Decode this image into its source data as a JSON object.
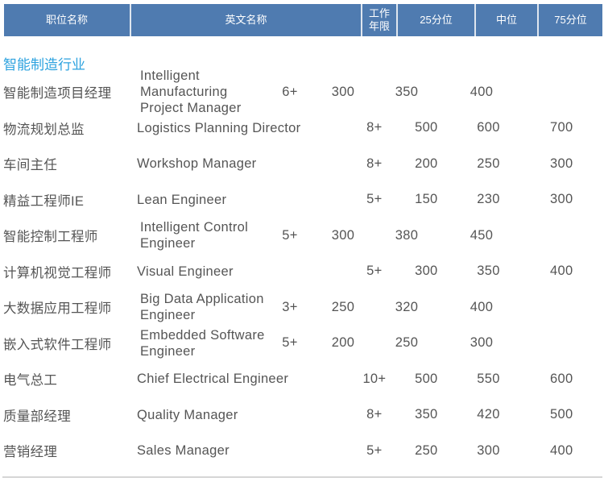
{
  "header": {
    "columns": [
      "职位名称",
      "英文名称",
      "工作\n年限",
      "25分位",
      "中位",
      "75分位"
    ]
  },
  "section_title": "智能制造行业",
  "rows": [
    {
      "zh": "智能制造项目经理",
      "en": "Intelligent Manufacturing Project Manager",
      "years": "6+",
      "p25": "300",
      "median": "350",
      "p75": "400"
    },
    {
      "zh": "物流规划总监",
      "en": "Logistics Planning Director",
      "years": "8+",
      "p25": "500",
      "median": "600",
      "p75": "700"
    },
    {
      "zh": "车间主任",
      "en": "Workshop Manager",
      "years": "8+",
      "p25": "200",
      "median": "250",
      "p75": "300"
    },
    {
      "zh": "精益工程师IE",
      "en": "Lean Engineer",
      "years": "5+",
      "p25": "150",
      "median": "230",
      "p75": "300"
    },
    {
      "zh": "智能控制工程师",
      "en": "Intelligent Control Engineer",
      "years": "5+",
      "p25": "300",
      "median": "380",
      "p75": "450"
    },
    {
      "zh": "计算机视觉工程师",
      "en": "Visual Engineer",
      "years": "5+",
      "p25": "300",
      "median": "350",
      "p75": "400"
    },
    {
      "zh": "大数据应用工程师",
      "en": "Big Data Application Engineer",
      "years": "3+",
      "p25": "250",
      "median": "320",
      "p75": "400"
    },
    {
      "zh": "嵌入式软件工程师",
      "en": "Embedded Software Engineer",
      "years": "5+",
      "p25": "200",
      "median": "250",
      "p75": "300"
    },
    {
      "zh": "电气总工",
      "en": "Chief Electrical Engineer",
      "years": "10+",
      "p25": "500",
      "median": "550",
      "p75": "600"
    },
    {
      "zh": "质量部经理",
      "en": "Quality Manager",
      "years": "8+",
      "p25": "350",
      "median": "420",
      "p75": "500"
    },
    {
      "zh": "营销经理",
      "en": "Sales Manager",
      "years": "5+",
      "p25": "250",
      "median": "300",
      "p75": "400"
    }
  ]
}
